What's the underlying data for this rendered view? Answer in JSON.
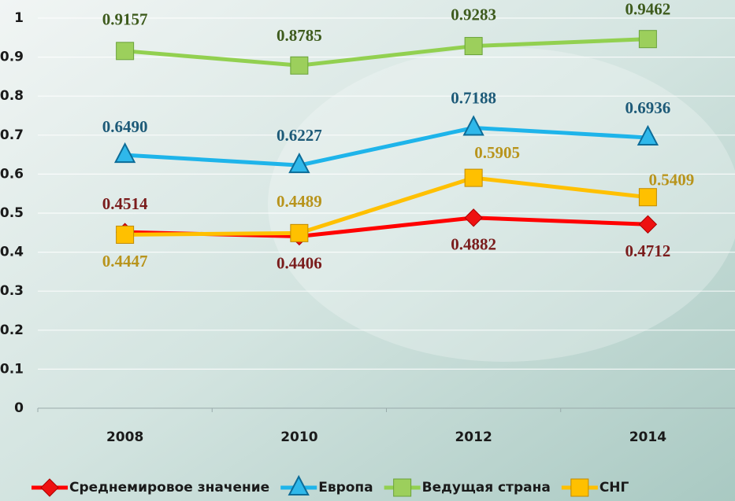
{
  "chart_data": {
    "type": "line",
    "categories": [
      "2008",
      "2010",
      "2012",
      "2014"
    ],
    "series": [
      {
        "name": "Среднемировое значение",
        "color": "#ff0000",
        "marker": "diamond",
        "label_color": "#7a1c1c",
        "values": [
          0.4514,
          0.4406,
          0.4882,
          0.4712
        ],
        "value_labels": [
          "0.4514",
          "0.4406",
          "0.4882",
          "0.4712"
        ]
      },
      {
        "name": "Европа",
        "color": "#1eb4ea",
        "marker": "triangle",
        "label_color": "#1d5a78",
        "values": [
          0.649,
          0.6227,
          0.7188,
          0.6936
        ],
        "value_labels": [
          "0.6490",
          "0.6227",
          "0.7188",
          "0.6936"
        ]
      },
      {
        "name": "Ведущая страна",
        "color": "#92d050",
        "marker": "square-x",
        "label_color": "#3e5b1d",
        "values": [
          0.9157,
          0.8785,
          0.9283,
          0.9462
        ],
        "value_labels": [
          "0.9157",
          "0.8785",
          "0.9283",
          "0.9462"
        ]
      },
      {
        "name": "СНГ",
        "color": "#ffc000",
        "marker": "square",
        "label_color": "#b8941c",
        "values": [
          0.4447,
          0.4489,
          0.5905,
          0.5409
        ],
        "value_labels": [
          "0.4447",
          "0.4489",
          "0.5905",
          "0.5409"
        ]
      }
    ],
    "ylim": [
      0,
      1
    ],
    "yticks": [
      0,
      0.1,
      0.2,
      0.3,
      0.4,
      0.5,
      0.6,
      0.7,
      0.8,
      0.9,
      1
    ],
    "grid": true,
    "legend": "bottom"
  }
}
